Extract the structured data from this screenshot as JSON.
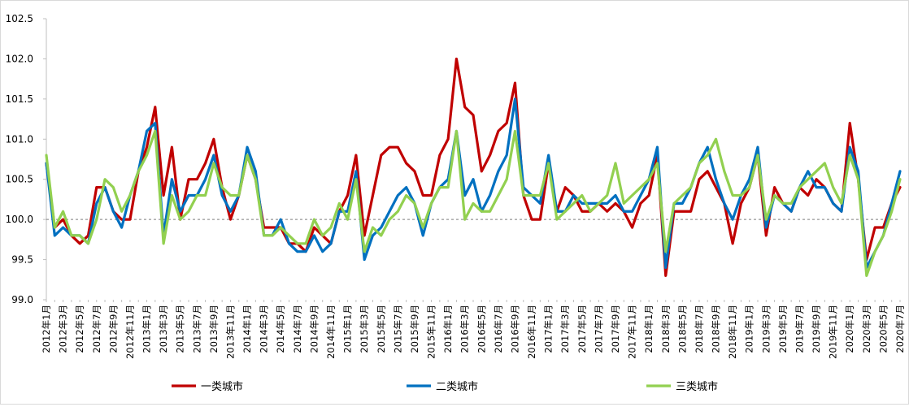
{
  "chart_data": {
    "type": "line",
    "title": "",
    "xlabel": "",
    "ylabel": "",
    "ylim": [
      99.0,
      102.5
    ],
    "ytick_step": 0.5,
    "y_tick_labels": [
      "99.0",
      "99.5",
      "100.0",
      "100.5",
      "101.0",
      "101.5",
      "102.0",
      "102.5"
    ],
    "reference_line": 100.0,
    "grid": false,
    "legend_position": "bottom",
    "x": [
      "2012年1月",
      "2012年2月",
      "2012年3月",
      "2012年4月",
      "2012年5月",
      "2012年6月",
      "2012年7月",
      "2012年8月",
      "2012年9月",
      "2012年10月",
      "2012年11月",
      "2012年12月",
      "2013年1月",
      "2013年2月",
      "2013年3月",
      "2013年4月",
      "2013年5月",
      "2013年6月",
      "2013年7月",
      "2013年8月",
      "2013年9月",
      "2013年10月",
      "2013年11月",
      "2013年12月",
      "2014年1月",
      "2014年2月",
      "2014年3月",
      "2014年4月",
      "2014年5月",
      "2014年6月",
      "2014年7月",
      "2014年8月",
      "2014年9月",
      "2014年10月",
      "2014年11月",
      "2014年12月",
      "2015年1月",
      "2015年2月",
      "2015年3月",
      "2015年4月",
      "2015年5月",
      "2015年6月",
      "2015年7月",
      "2015年8月",
      "2015年9月",
      "2015年10月",
      "2015年11月",
      "2015年12月",
      "2016年1月",
      "2016年2月",
      "2016年3月",
      "2016年4月",
      "2016年5月",
      "2016年6月",
      "2016年7月",
      "2016年8月",
      "2016年9月",
      "2016年10月",
      "2016年11月",
      "2016年12月",
      "2017年1月",
      "2017年2月",
      "2017年3月",
      "2017年4月",
      "2017年5月",
      "2017年6月",
      "2017年7月",
      "2017年8月",
      "2017年9月",
      "2017年10月",
      "2017年11月",
      "2017年12月",
      "2018年1月",
      "2018年2月",
      "2018年3月",
      "2018年4月",
      "2018年5月",
      "2018年6月",
      "2018年7月",
      "2018年8月",
      "2018年9月",
      "2018年10月",
      "2018年11月",
      "2018年12月",
      "2019年1月",
      "2019年2月",
      "2019年3月",
      "2019年4月",
      "2019年5月",
      "2019年6月",
      "2019年7月",
      "2019年8月",
      "2019年9月",
      "2019年10月",
      "2019年11月",
      "2019年12月",
      "2020年1月",
      "2020年2月",
      "2020年3月",
      "2020年4月",
      "2020年5月",
      "2020年6月",
      "2020年7月"
    ],
    "x_tick_labels": [
      "2012年1月",
      "2012年3月",
      "2012年5月",
      "2012年7月",
      "2012年9月",
      "2012年11月",
      "2013年1月",
      "2013年3月",
      "2013年5月",
      "2013年7月",
      "2013年9月",
      "2013年11月",
      "2014年1月",
      "2014年3月",
      "2014年5月",
      "2014年7月",
      "2014年9月",
      "2014年11月",
      "2015年1月",
      "2015年3月",
      "2015年5月",
      "2015年7月",
      "2015年9月",
      "2015年11月",
      "2016年1月",
      "2016年3月",
      "2016年5月",
      "2016年7月",
      "2016年9月",
      "2016年11月",
      "2017年1月",
      "2017年3月",
      "2017年5月",
      "2017年7月",
      "2017年9月",
      "2017年11月",
      "2018年1月",
      "2018年3月",
      "2018年5月",
      "2018年7月",
      "2018年9月",
      "2018年11月",
      "2019年1月",
      "2019年3月",
      "2019年5月",
      "2019年7月",
      "2019年9月",
      "2019年11月",
      "2020年1月",
      "2020年3月",
      "2020年5月",
      "2020年7月"
    ],
    "series": [
      {
        "name": "一类城市",
        "color": "#c00000",
        "values": [
          100.7,
          99.9,
          100.0,
          99.8,
          99.7,
          99.8,
          100.4,
          100.4,
          100.1,
          100.0,
          100.0,
          100.6,
          100.9,
          101.4,
          100.3,
          100.9,
          100.0,
          100.5,
          100.5,
          100.7,
          101.0,
          100.4,
          100.0,
          100.3,
          100.8,
          100.5,
          99.9,
          99.9,
          99.9,
          99.7,
          99.7,
          99.6,
          99.9,
          99.8,
          99.7,
          100.1,
          100.3,
          100.8,
          99.8,
          100.3,
          100.8,
          100.9,
          100.9,
          100.7,
          100.6,
          100.3,
          100.3,
          100.8,
          101.0,
          102.0,
          101.4,
          101.3,
          100.6,
          100.8,
          101.1,
          101.2,
          101.7,
          100.3,
          100.0,
          100.0,
          100.7,
          100.1,
          100.4,
          100.3,
          100.1,
          100.1,
          100.2,
          100.1,
          100.2,
          100.1,
          99.9,
          100.2,
          100.3,
          100.8,
          99.3,
          100.1,
          100.1,
          100.1,
          100.5,
          100.6,
          100.4,
          100.2,
          99.7,
          100.2,
          100.4,
          100.8,
          99.8,
          100.4,
          100.2,
          100.1,
          100.4,
          100.3,
          100.5,
          100.4,
          100.2,
          100.1,
          101.2,
          100.5,
          99.5,
          99.9,
          99.9,
          100.2,
          100.4
        ]
      },
      {
        "name": "二类城市",
        "color": "#0070c0",
        "values": [
          100.7,
          99.8,
          99.9,
          99.8,
          99.8,
          99.7,
          100.2,
          100.4,
          100.1,
          99.9,
          100.3,
          100.6,
          101.1,
          101.2,
          99.8,
          100.5,
          100.1,
          100.3,
          100.3,
          100.5,
          100.8,
          100.3,
          100.1,
          100.3,
          100.9,
          100.6,
          99.8,
          99.8,
          100.0,
          99.7,
          99.6,
          99.6,
          99.8,
          99.6,
          99.7,
          100.1,
          100.1,
          100.6,
          99.5,
          99.8,
          99.9,
          100.1,
          100.3,
          100.4,
          100.2,
          99.8,
          100.2,
          100.4,
          100.5,
          101.1,
          100.3,
          100.5,
          100.1,
          100.3,
          100.6,
          100.8,
          101.5,
          100.4,
          100.3,
          100.2,
          100.8,
          100.1,
          100.1,
          100.3,
          100.2,
          100.2,
          100.2,
          100.2,
          100.3,
          100.1,
          100.1,
          100.3,
          100.5,
          100.9,
          99.4,
          100.2,
          100.2,
          100.4,
          100.7,
          100.9,
          100.5,
          100.2,
          100.0,
          100.3,
          100.5,
          100.9,
          99.9,
          100.3,
          100.2,
          100.1,
          100.4,
          100.6,
          100.4,
          100.4,
          100.2,
          100.1,
          100.9,
          100.6,
          99.4,
          99.6,
          99.8,
          100.2,
          100.6
        ]
      },
      {
        "name": "三类城市",
        "color": "#92d050",
        "values": [
          100.8,
          99.9,
          100.1,
          99.8,
          99.8,
          99.7,
          100.0,
          100.5,
          100.4,
          100.1,
          100.3,
          100.6,
          100.8,
          101.1,
          99.7,
          100.3,
          100.0,
          100.1,
          100.3,
          100.3,
          100.7,
          100.4,
          100.3,
          100.3,
          100.8,
          100.5,
          99.8,
          99.8,
          99.9,
          99.8,
          99.7,
          99.7,
          100.0,
          99.8,
          99.9,
          100.2,
          100.0,
          100.5,
          99.6,
          99.9,
          99.8,
          100.0,
          100.1,
          100.3,
          100.2,
          99.9,
          100.2,
          100.4,
          100.4,
          101.1,
          100.0,
          100.2,
          100.1,
          100.1,
          100.3,
          100.5,
          101.1,
          100.3,
          100.3,
          100.3,
          100.7,
          100.0,
          100.1,
          100.2,
          100.3,
          100.1,
          100.2,
          100.3,
          100.7,
          100.2,
          100.3,
          100.4,
          100.5,
          100.7,
          99.6,
          100.2,
          100.3,
          100.4,
          100.7,
          100.8,
          101.0,
          100.6,
          100.3,
          100.3,
          100.4,
          100.8,
          100.0,
          100.3,
          100.2,
          100.2,
          100.4,
          100.5,
          100.6,
          100.7,
          100.4,
          100.2,
          100.8,
          100.5,
          99.3,
          99.6,
          99.8,
          100.1,
          100.5
        ]
      }
    ]
  }
}
